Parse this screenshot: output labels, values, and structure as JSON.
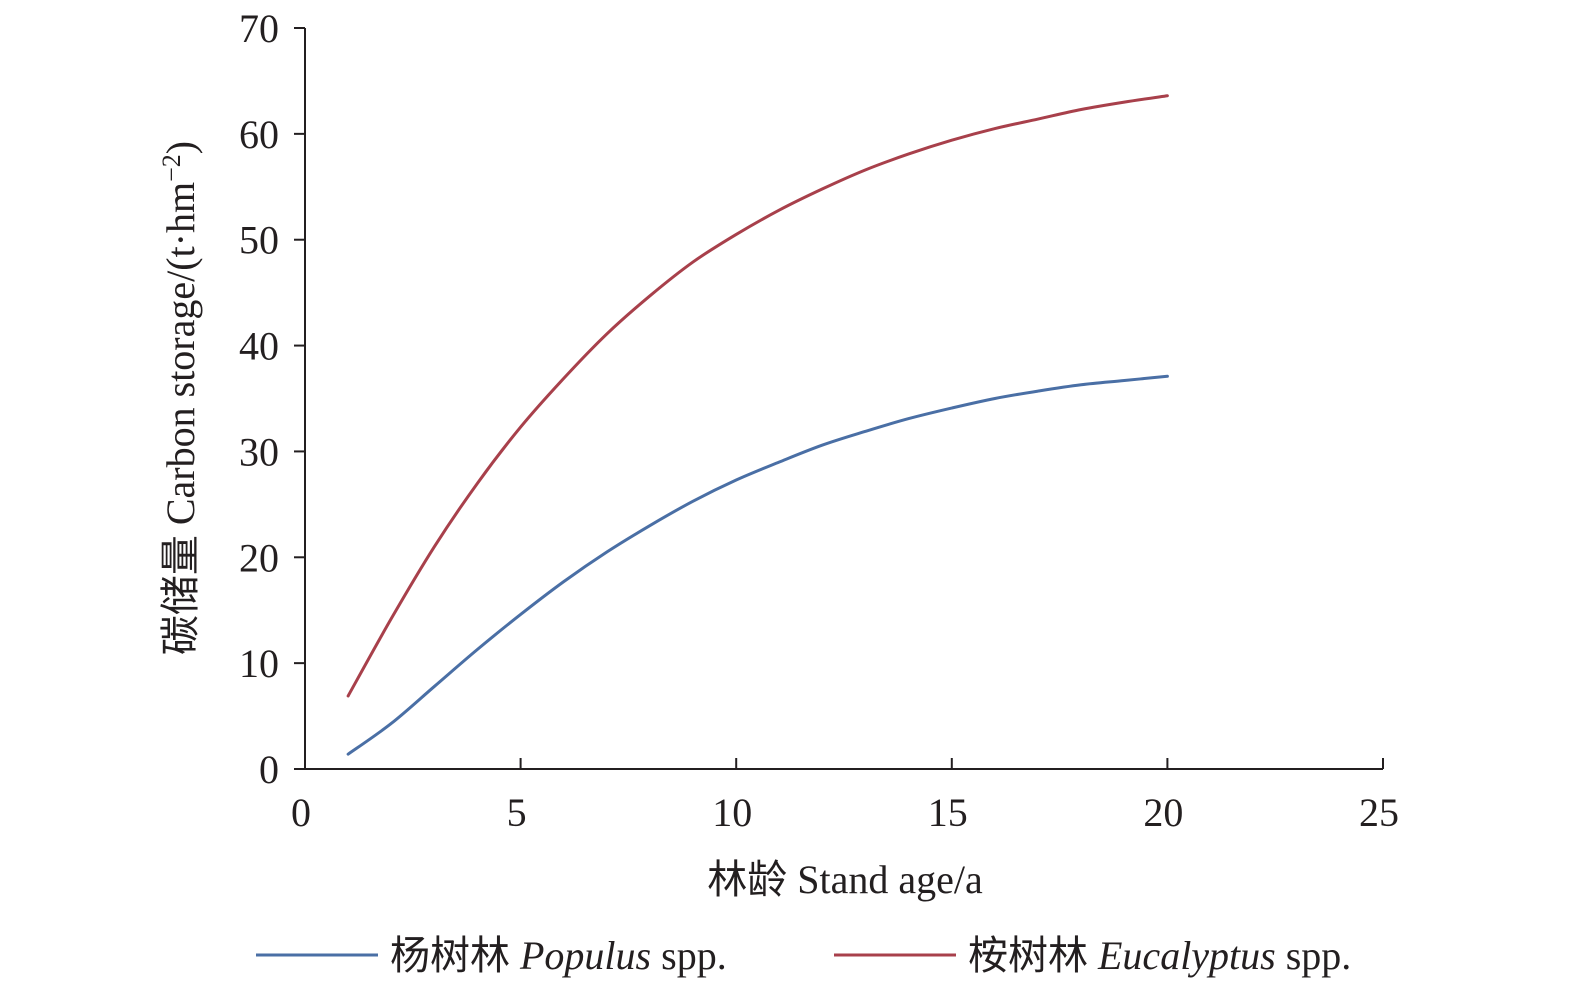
{
  "chart_data": {
    "type": "line",
    "title": "",
    "xlabel": "林龄 Stand age/a",
    "ylabel_main": "碳储量 Carbon storage/(t·hm",
    "ylabel_sup": "−2",
    "ylabel_tail": ")",
    "xlim": [
      0,
      25
    ],
    "ylim": [
      0,
      70
    ],
    "xticks": [
      0,
      5,
      10,
      15,
      20,
      25
    ],
    "yticks": [
      0,
      10,
      20,
      30,
      40,
      50,
      60,
      70
    ],
    "grid": false,
    "legend_position": "bottom",
    "series": [
      {
        "name_cn": "杨树林",
        "name_latin": "Populus",
        "name_suffix": "spp.",
        "color": "#4a6fa5",
        "x": [
          1,
          2,
          3,
          4,
          5,
          6,
          7,
          8,
          9,
          10,
          11,
          12,
          13,
          14,
          15,
          16,
          17,
          18,
          19,
          20
        ],
        "y": [
          1.4,
          4.3,
          7.8,
          11.3,
          14.6,
          17.7,
          20.5,
          23.0,
          25.3,
          27.3,
          29.0,
          30.6,
          31.9,
          33.1,
          34.1,
          35.0,
          35.7,
          36.3,
          36.7,
          37.1
        ]
      },
      {
        "name_cn": "桉树林",
        "name_latin": "Eucalyptus",
        "name_suffix": "spp.",
        "color": "#a8404b",
        "x": [
          1,
          2,
          3,
          4,
          5,
          6,
          7,
          8,
          9,
          10,
          11,
          12,
          13,
          14,
          15,
          16,
          17,
          18,
          19,
          20
        ],
        "y": [
          6.9,
          14.2,
          21.0,
          27.0,
          32.3,
          36.9,
          41.1,
          44.7,
          47.9,
          50.5,
          52.8,
          54.8,
          56.6,
          58.1,
          59.4,
          60.5,
          61.4,
          62.3,
          63.0,
          63.6
        ]
      }
    ]
  }
}
